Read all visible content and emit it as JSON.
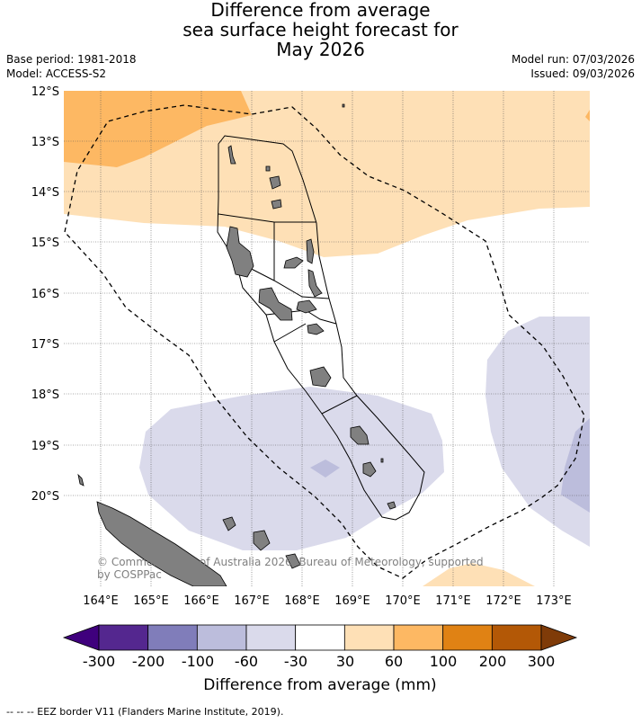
{
  "title": {
    "line1": "Difference from average",
    "line2": "sea surface height forecast for",
    "line3": "May 2026"
  },
  "meta": {
    "base_period": "Base period: 1981-2018",
    "model": "Model: ACCESS-S2",
    "model_run": "Model run: 07/03/2026",
    "issued": "Issued: 09/03/2026"
  },
  "map": {
    "lat_labels": [
      "12°S",
      "13°S",
      "14°S",
      "15°S",
      "16°S",
      "17°S",
      "18°S",
      "19°S",
      "20°S"
    ],
    "lon_labels": [
      "164°E",
      "165°E",
      "166°E",
      "167°E",
      "168°E",
      "169°E",
      "170°E",
      "171°E",
      "172°E",
      "173°E"
    ],
    "copyright_line1": "© Commonwealth of Australia 2026, Bureau of Meteorology, supported",
    "copyright_line2": "by COSPPac"
  },
  "colorbar": {
    "title": "Difference from average (mm)",
    "tick_labels": [
      "-300",
      "-200",
      "-100",
      "-60",
      "-30",
      "30",
      "60",
      "100",
      "200",
      "300"
    ],
    "colors": [
      "#3f007d",
      "#54278f",
      "#807dba",
      "#bcbddc",
      "#dadaeb",
      "#ffffff",
      "#fee0b6",
      "#fdb863",
      "#e08214",
      "#b35806",
      "#7f3b08"
    ]
  },
  "footnote": "--  --  -- EEZ border V11 (Flanders Marine Institute, 2019)."
}
